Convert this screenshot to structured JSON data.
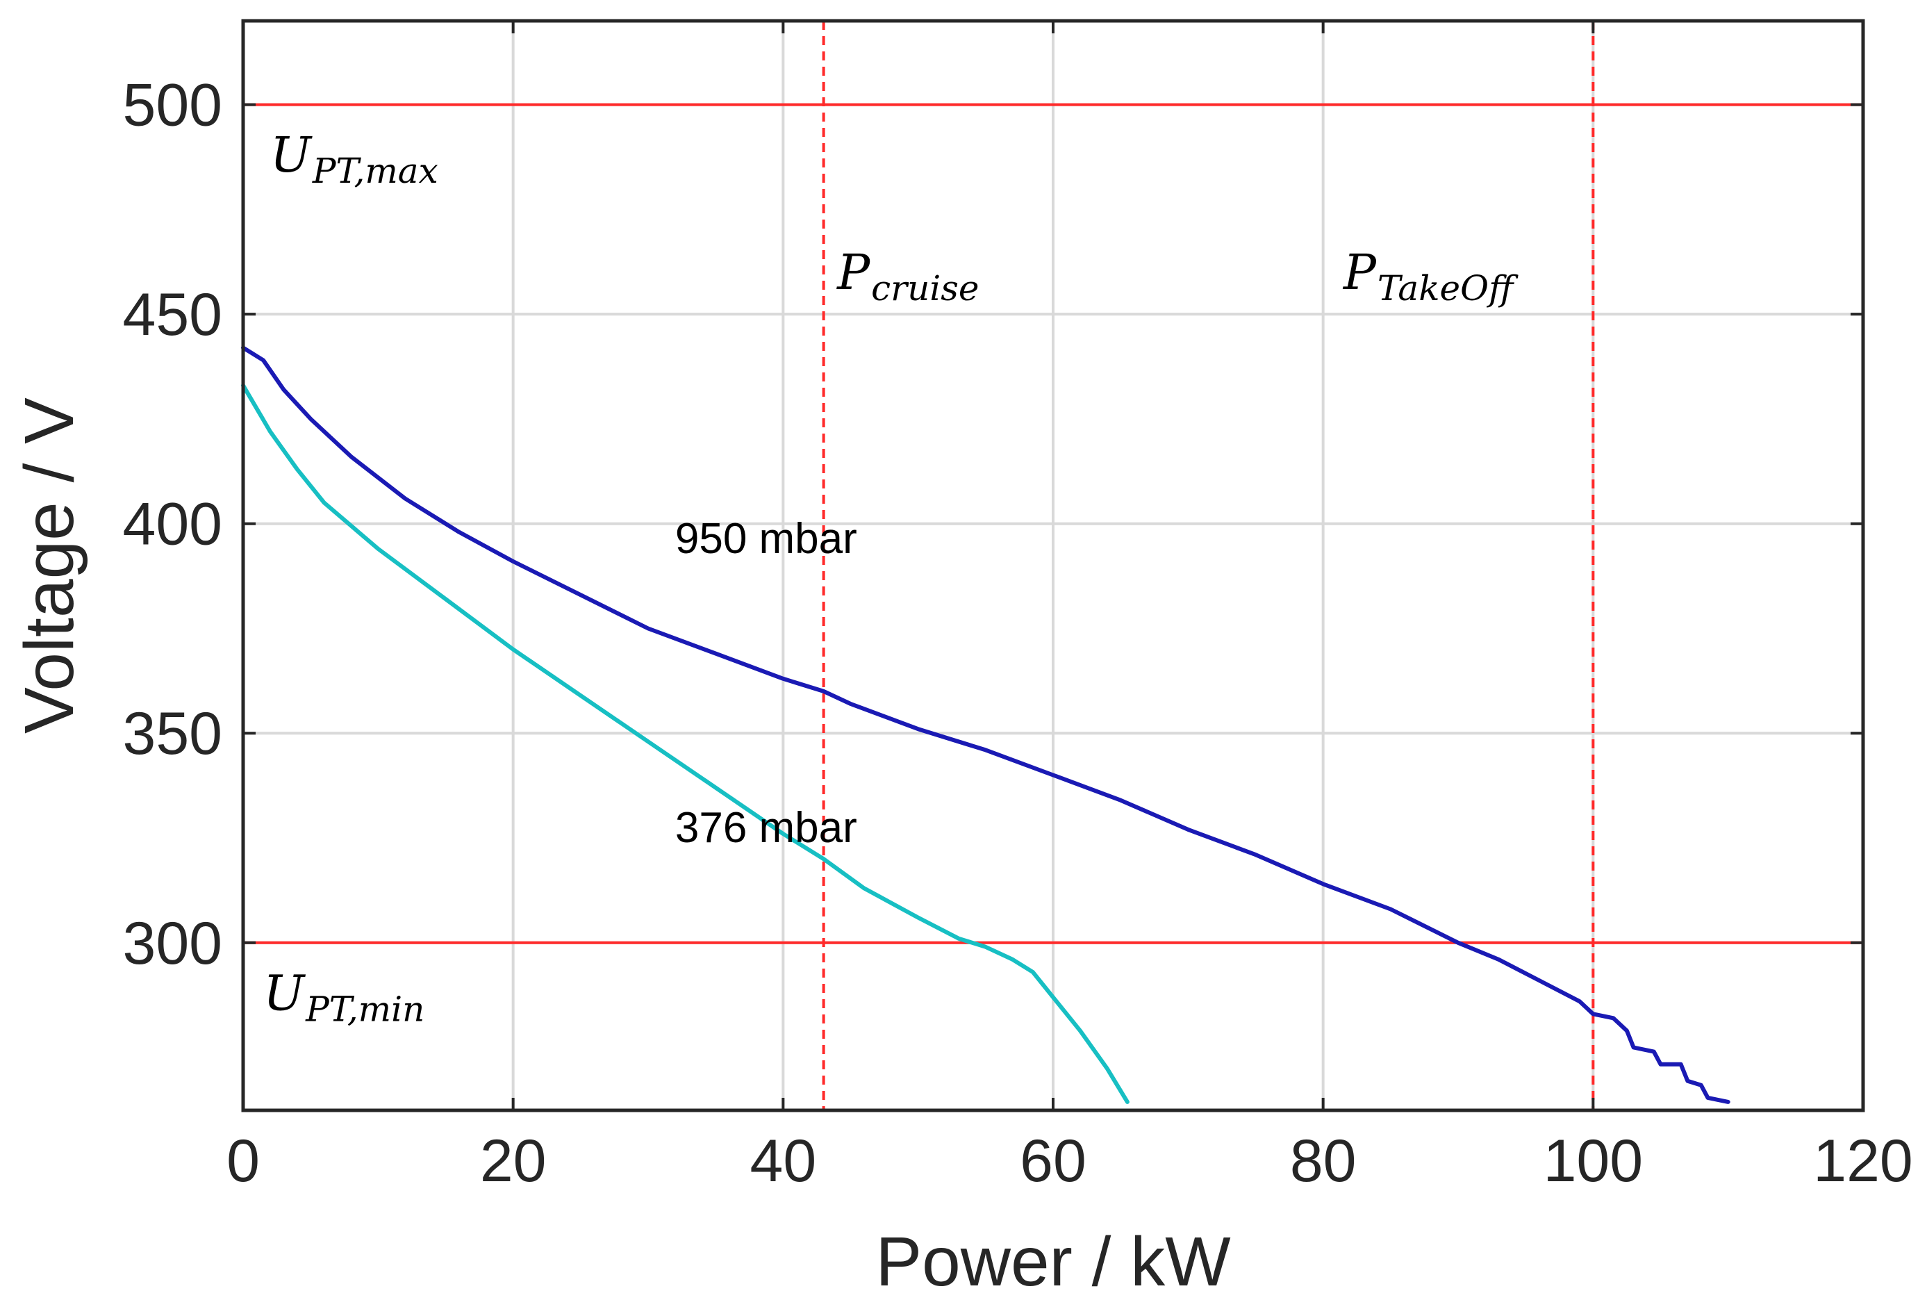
{
  "chart_data": {
    "type": "line",
    "title": "",
    "xlabel": "Power / kW",
    "ylabel": "Voltage / V",
    "xlim": [
      0,
      120
    ],
    "ylim": [
      260,
      520
    ],
    "xticks": [
      0,
      20,
      40,
      60,
      80,
      100,
      120
    ],
    "yticks": [
      300,
      350,
      400,
      450,
      500
    ],
    "grid": true,
    "colors": {
      "axis": "#262626",
      "grid": "#d9d9d9",
      "reference": "#ff2a2a",
      "series_950": "#1a1ab4",
      "series_376": "#17bfc3"
    },
    "series": [
      {
        "name": "950 mbar",
        "label": "950 mbar",
        "label_at": [
          32,
          393
        ],
        "color": "#1a1ab4",
        "points": [
          [
            0,
            442
          ],
          [
            1.5,
            439
          ],
          [
            3,
            432
          ],
          [
            5,
            425
          ],
          [
            8,
            416
          ],
          [
            12,
            406
          ],
          [
            16,
            398
          ],
          [
            20,
            391
          ],
          [
            25,
            383
          ],
          [
            30,
            375
          ],
          [
            35,
            369
          ],
          [
            40,
            363
          ],
          [
            43,
            360
          ],
          [
            45,
            357
          ],
          [
            50,
            351
          ],
          [
            55,
            346
          ],
          [
            60,
            340
          ],
          [
            65,
            334
          ],
          [
            70,
            327
          ],
          [
            75,
            321
          ],
          [
            80,
            314
          ],
          [
            85,
            308
          ],
          [
            90,
            300
          ],
          [
            93,
            296
          ],
          [
            96,
            291
          ],
          [
            99,
            286
          ],
          [
            100,
            283
          ],
          [
            101.5,
            282
          ],
          [
            102.5,
            279
          ],
          [
            103,
            275
          ],
          [
            104.5,
            274
          ],
          [
            105,
            271
          ],
          [
            106.5,
            271
          ],
          [
            107,
            267
          ],
          [
            108,
            266
          ],
          [
            108.5,
            263
          ],
          [
            110,
            262
          ]
        ]
      },
      {
        "name": "376 mbar",
        "label": "376 mbar",
        "label_at": [
          32,
          324
        ],
        "color": "#17bfc3",
        "points": [
          [
            0,
            433
          ],
          [
            2,
            422
          ],
          [
            4,
            413
          ],
          [
            6,
            405
          ],
          [
            10,
            394
          ],
          [
            15,
            382
          ],
          [
            20,
            370
          ],
          [
            25,
            359
          ],
          [
            30,
            348
          ],
          [
            35,
            337
          ],
          [
            40,
            326
          ],
          [
            43,
            320
          ],
          [
            46,
            313
          ],
          [
            50,
            306
          ],
          [
            53,
            301
          ],
          [
            55,
            299
          ],
          [
            57,
            296
          ],
          [
            58.5,
            293
          ],
          [
            60,
            287
          ],
          [
            62,
            279
          ],
          [
            64,
            270
          ],
          [
            65.5,
            262
          ]
        ]
      }
    ],
    "reference_lines": [
      {
        "orientation": "horizontal",
        "value": 500,
        "style": "solid",
        "label_main": "U",
        "label_sub": "PT,max",
        "label_at": [
          2,
          484
        ]
      },
      {
        "orientation": "horizontal",
        "value": 300,
        "style": "solid",
        "label_main": "U",
        "label_sub": "PT,min",
        "label_at": [
          1.5,
          284
        ]
      },
      {
        "orientation": "vertical",
        "value": 43,
        "style": "dashed",
        "label_main": "P",
        "label_sub": "cruise",
        "label_at": [
          44,
          456
        ]
      },
      {
        "orientation": "vertical",
        "value": 100,
        "style": "dashed",
        "label_main": "P",
        "label_sub": "TakeOff",
        "label_at": [
          81.5,
          456
        ]
      }
    ]
  }
}
